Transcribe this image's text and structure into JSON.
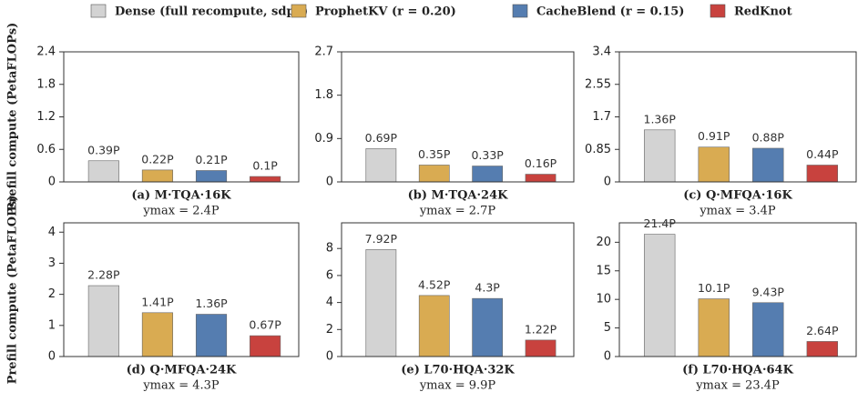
{
  "legend": [
    {
      "name": "Dense (full recompute, sdpa)",
      "color": "#d3d3d3"
    },
    {
      "name": "ProphetKV (r = 0.20)",
      "color": "#d9ab52"
    },
    {
      "name": "CacheBlend (r = 0.15)",
      "color": "#557db0"
    },
    {
      "name": "RedKnot",
      "color": "#c8423e"
    }
  ],
  "chart_data": [
    {
      "type": "bar",
      "title": "(a) M·TQA·16K",
      "subtitle": "ymax = 2.4P",
      "ylabel": "Prefill compute (PetaFLOPs)",
      "values": [
        0.39,
        0.22,
        0.21,
        0.1
      ],
      "value_labels": [
        "0.39P",
        "0.22P",
        "0.21P",
        "0.1P"
      ],
      "ylim": [
        0,
        2.4
      ],
      "yticks": [
        0,
        0.6,
        1.2,
        1.8,
        2.4
      ]
    },
    {
      "type": "bar",
      "title": "(b) M·TQA·24K",
      "subtitle": "ymax = 2.7P",
      "values": [
        0.69,
        0.35,
        0.33,
        0.16
      ],
      "value_labels": [
        "0.69P",
        "0.35P",
        "0.33P",
        "0.16P"
      ],
      "ylim": [
        0,
        2.7
      ],
      "yticks": [
        0,
        0.9,
        1.8,
        2.7
      ]
    },
    {
      "type": "bar",
      "title": "(c) Q·MFQA·16K",
      "subtitle": "ymax = 3.4P",
      "values": [
        1.36,
        0.91,
        0.88,
        0.44
      ],
      "value_labels": [
        "1.36P",
        "0.91P",
        "0.88P",
        "0.44P"
      ],
      "ylim": [
        0,
        3.4
      ],
      "yticks": [
        0,
        0.85,
        1.7,
        2.55,
        3.4
      ]
    },
    {
      "type": "bar",
      "title": "(d) Q·MFQA·24K",
      "subtitle": "ymax = 4.3P",
      "ylabel": "Prefill compute (PetaFLOPs)",
      "values": [
        2.28,
        1.41,
        1.36,
        0.67
      ],
      "value_labels": [
        "2.28P",
        "1.41P",
        "1.36P",
        "0.67P"
      ],
      "ylim": [
        0,
        4.3
      ],
      "yticks": [
        0,
        1,
        2,
        3,
        4
      ]
    },
    {
      "type": "bar",
      "title": "(e) L70·HQA·32K",
      "subtitle": "ymax = 9.9P",
      "values": [
        7.92,
        4.52,
        4.3,
        1.22
      ],
      "value_labels": [
        "7.92P",
        "4.52P",
        "4.3P",
        "1.22P"
      ],
      "ylim": [
        0,
        9.9
      ],
      "yticks": [
        0,
        2,
        4,
        6,
        8
      ]
    },
    {
      "type": "bar",
      "title": "(f) L70·HQA·64K",
      "subtitle": "ymax = 23.4P",
      "values": [
        21.4,
        10.1,
        9.43,
        2.64
      ],
      "value_labels": [
        "21.4P",
        "10.1P",
        "9.43P",
        "2.64P"
      ],
      "ylim": [
        0,
        23.4
      ],
      "yticks": [
        0,
        5,
        10,
        15,
        20
      ]
    }
  ]
}
